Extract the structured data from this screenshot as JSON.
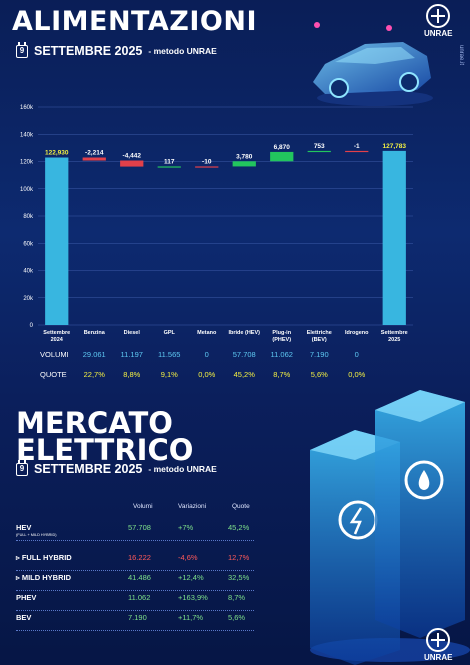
{
  "header": {
    "title": "ALIMENTAZIONI",
    "subtitle": "SETTEMBRE 2025",
    "method": " - metodo UNRAE",
    "calendar_day": "9",
    "logo_text": "UNRAE",
    "site": "unrae.it"
  },
  "chart_data": {
    "type": "bar",
    "subtype": "waterfall",
    "categories": [
      "Settembre 2024",
      "Benzina",
      "Diesel",
      "GPL",
      "Metano",
      "Ibride (HEV)",
      "Plug-in (PHEV)",
      "Elettriche (BEV)",
      "Idrogeno",
      "Settembre 2025"
    ],
    "category_lines": [
      [
        "Settembre",
        "2024"
      ],
      [
        "Benzina"
      ],
      [
        "Diesel"
      ],
      [
        "GPL"
      ],
      [
        "Metano"
      ],
      [
        "Ibride (HEV)"
      ],
      [
        "Plug-in",
        "(PHEV)"
      ],
      [
        "Elettriche",
        "(BEV)"
      ],
      [
        "Idrogeno"
      ],
      [
        "Settembre",
        "2025"
      ]
    ],
    "values": [
      122930,
      -2214,
      -4442,
      117,
      -10,
      3780,
      6870,
      753,
      -1,
      127783
    ],
    "data_labels": [
      "122,930",
      "-2,214",
      "-4,442",
      "117",
      "-10",
      "3,780",
      "6,870",
      "753",
      "-1",
      "127,783"
    ],
    "ylim": [
      0,
      160000
    ],
    "yticks": [
      "0",
      "20k",
      "40k",
      "60k",
      "80k",
      "100k",
      "120k",
      "140k",
      "160k"
    ],
    "grid": true,
    "colors": {
      "total": "#38b6e0",
      "decrease": "#e2404a",
      "increase": "#22c55e",
      "label_total": "#f4f142"
    }
  },
  "rows": {
    "volumi_label": "VOLUMI",
    "volumi": [
      "29.061",
      "11.197",
      "11.565",
      "0",
      "57.708",
      "11.062",
      "7.190",
      "0"
    ],
    "quote_label": "QUOTE",
    "quote": [
      "22,7%",
      "8,8%",
      "9,1%",
      "0,0%",
      "45,2%",
      "8,7%",
      "5,6%",
      "0,0%"
    ]
  },
  "section2": {
    "title_line1": "MERCATO",
    "title_line2": "ELETTRICO",
    "subtitle": "SETTEMBRE 2025",
    "method": " - metodo UNRAE",
    "calendar_day": "9",
    "headers": [
      "Volumi",
      "Variazioni",
      "Quote"
    ],
    "table": [
      {
        "label": "HEV",
        "sub": "(FULL + MILD HYBRID)",
        "volumi": "57.708",
        "variazioni": "+7%",
        "quote": "45,2%",
        "var_color": "#7ee08a",
        "vol_color": "#7ee08a",
        "quote_color": "#7ee08a"
      },
      {
        "label": "▹ FULL HYBRID",
        "sub": "",
        "volumi": "16.222",
        "variazioni": "-4,6%",
        "quote": "12,7%",
        "var_color": "#ff5a5a",
        "vol_color": "#ff5a5a",
        "quote_color": "#ff5a5a"
      },
      {
        "label": "▹ MILD HYBRID",
        "sub": "",
        "volumi": "41.486",
        "variazioni": "+12,4%",
        "quote": "32,5%",
        "var_color": "#7ee08a",
        "vol_color": "#7ee08a",
        "quote_color": "#7ee08a"
      },
      {
        "label": "PHEV",
        "sub": "",
        "volumi": "11.062",
        "variazioni": "+163,9%",
        "quote": "8,7%",
        "var_color": "#7ee08a",
        "vol_color": "#7ee08a",
        "quote_color": "#7ee08a"
      },
      {
        "label": "BEV",
        "sub": "",
        "volumi": "7.190",
        "variazioni": "+11,7%",
        "quote": "5,6%",
        "var_color": "#7ee08a",
        "vol_color": "#7ee08a",
        "quote_color": "#7ee08a"
      }
    ]
  },
  "footer": {
    "logo_text": "UNRAE"
  }
}
